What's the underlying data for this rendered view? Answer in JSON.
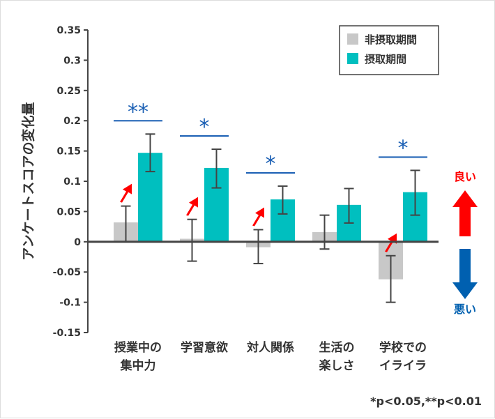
{
  "chart_data": {
    "type": "bar",
    "ylabel": "アンケートスコアの変化量",
    "ylim": [
      -0.15,
      0.35
    ],
    "yticks": [
      "0.35",
      "0.3",
      "0.25",
      "0.2",
      "0.15",
      "0.1",
      "0.05",
      "0",
      "-0.05",
      "-0.1",
      "-0.15"
    ],
    "categories": [
      [
        "授業中の",
        "集中力"
      ],
      [
        "学習意欲"
      ],
      [
        "対人関係"
      ],
      [
        "生活の",
        "楽しさ"
      ],
      [
        "学校での",
        "イライラ"
      ]
    ],
    "series": [
      {
        "name": "非摂取期間",
        "color": "#c8c8c8",
        "values": [
          0.032,
          0.005,
          -0.009,
          0.016,
          -0.062
        ],
        "err_high": [
          0.059,
          0.037,
          0.02,
          0.044,
          -0.023
        ],
        "err_low": [
          0.0,
          -0.032,
          -0.036,
          -0.012,
          -0.1
        ]
      },
      {
        "name": "摂取期間",
        "color": "#00bfbf",
        "values": [
          0.147,
          0.122,
          0.07,
          0.061,
          0.082
        ],
        "err_high": [
          0.178,
          0.153,
          0.092,
          0.088,
          0.118
        ],
        "err_low": [
          0.116,
          0.089,
          0.046,
          0.031,
          0.044
        ]
      }
    ],
    "significance": [
      "**",
      "*",
      "*",
      "",
      "*"
    ],
    "improved_arrows": [
      true,
      true,
      true,
      false,
      true
    ],
    "legend_position": "top-right",
    "side_labels": {
      "good": "良い",
      "bad": "悪い",
      "good_color": "#ff0000",
      "bad_color": "#0060b0"
    },
    "footnote": "*p<0.05,**p<0.01"
  }
}
